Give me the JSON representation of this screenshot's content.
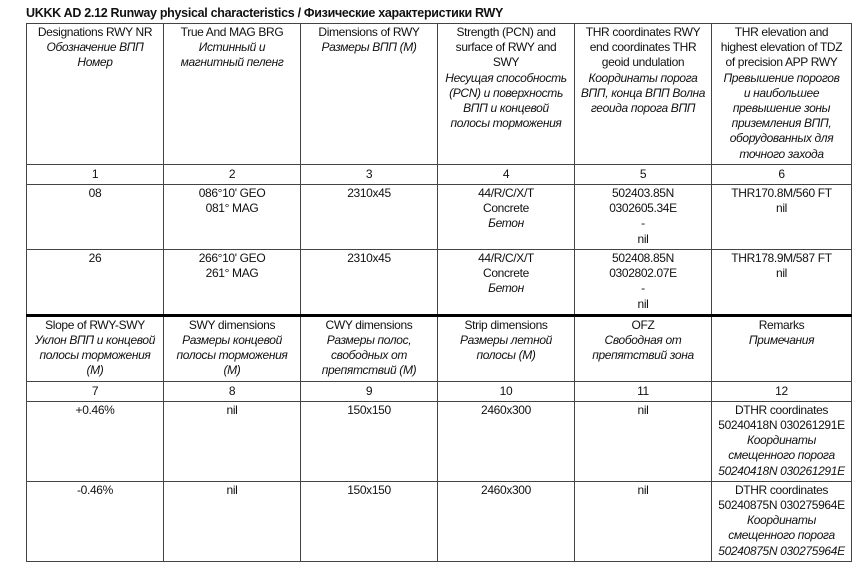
{
  "title": "UKKK AD 2.12 Runway physical characteristics / Физические характеристики RWY",
  "blocks": [
    {
      "header": [
        [
          {
            "t": "Designations RWY NR"
          },
          {
            "t": "Обозначение ВПП",
            "i": true
          },
          {
            "t": "Номер",
            "i": true
          }
        ],
        [
          {
            "t": "True And MAG BRG"
          },
          {
            "t": "Истинный и",
            "i": true
          },
          {
            "t": "магнитный пеленг",
            "i": true
          }
        ],
        [
          {
            "t": "Dimensions of RWY"
          },
          {
            "t": "Размеры ВПП (M)",
            "i": true
          }
        ],
        [
          {
            "t": "Strength (PCN) and"
          },
          {
            "t": "surface of RWY and"
          },
          {
            "t": "SWY"
          },
          {
            "t": "Несущая способность",
            "i": true
          },
          {
            "t": "(PCN) и поверхность",
            "i": true
          },
          {
            "t": "ВПП и концевой",
            "i": true
          },
          {
            "t": "полосы торможения",
            "i": true
          }
        ],
        [
          {
            "t": "THR coordinates RWY"
          },
          {
            "t": "end coordinates THR"
          },
          {
            "t": "geoid undulation"
          },
          {
            "t": "Координаты порога",
            "i": true
          },
          {
            "t": "ВПП, конца ВПП Волна",
            "i": true
          },
          {
            "t": "геоида порога ВПП",
            "i": true
          }
        ],
        [
          {
            "t": "THR elevation and"
          },
          {
            "t": "highest elevation of TDZ"
          },
          {
            "t": "of precision APP RWY"
          },
          {
            "t": "Превышение порогов",
            "i": true
          },
          {
            "t": "и наибольшее",
            "i": true
          },
          {
            "t": "превышение зоны",
            "i": true
          },
          {
            "t": "приземления ВПП,",
            "i": true
          },
          {
            "t": "оборудованных для",
            "i": true
          },
          {
            "t": "точного захода",
            "i": true
          }
        ]
      ],
      "numbers": [
        "1",
        "2",
        "3",
        "4",
        "5",
        "6"
      ],
      "rows": [
        [
          [
            {
              "t": "08"
            }
          ],
          [
            {
              "t": "086°10' GEO"
            },
            {
              "t": "081° MAG"
            }
          ],
          [
            {
              "t": "2310x45"
            }
          ],
          [
            {
              "t": "44/R/C/X/T"
            },
            {
              "t": "Concrete"
            },
            {
              "t": "Бетон",
              "i": true
            }
          ],
          [
            {
              "t": "502403.85N"
            },
            {
              "t": "0302605.34E"
            },
            {
              "t": "-"
            },
            {
              "t": "nil"
            }
          ],
          [
            {
              "t": "THR170.8M/560 FT"
            },
            {
              "t": "nil"
            }
          ]
        ],
        [
          [
            {
              "t": "26"
            }
          ],
          [
            {
              "t": "266°10' GEO"
            },
            {
              "t": "261° MAG"
            }
          ],
          [
            {
              "t": "2310x45"
            }
          ],
          [
            {
              "t": "44/R/C/X/T"
            },
            {
              "t": "Concrete"
            },
            {
              "t": "Бетон",
              "i": true
            }
          ],
          [
            {
              "t": "502408.85N"
            },
            {
              "t": "0302802.07E"
            },
            {
              "t": "-"
            },
            {
              "t": "nil"
            }
          ],
          [
            {
              "t": "THR178.9M/587 FT"
            },
            {
              "t": "nil"
            }
          ]
        ]
      ]
    },
    {
      "header": [
        [
          {
            "t": "Slope of RWY-SWY"
          },
          {
            "t": "Уклон ВПП и концевой",
            "i": true
          },
          {
            "t": "полосы торможения",
            "i": true
          },
          {
            "t": "(M)",
            "i": true
          }
        ],
        [
          {
            "t": "SWY dimensions"
          },
          {
            "t": "Размеры концевой",
            "i": true
          },
          {
            "t": "полосы торможения",
            "i": true
          },
          {
            "t": "(M)",
            "i": true
          }
        ],
        [
          {
            "t": "CWY dimensions"
          },
          {
            "t": "Размеры полос,",
            "i": true
          },
          {
            "t": "свободных от",
            "i": true
          },
          {
            "t": "препятствий (M)",
            "i": true
          }
        ],
        [
          {
            "t": "Strip dimensions"
          },
          {
            "t": "Размеры летной",
            "i": true
          },
          {
            "t": "полосы (M)",
            "i": true
          }
        ],
        [
          {
            "t": "OFZ"
          },
          {
            "t": "Свободная от",
            "i": true
          },
          {
            "t": "препятствий зона",
            "i": true
          }
        ],
        [
          {
            "t": "Remarks"
          },
          {
            "t": "Примечания",
            "i": true
          }
        ]
      ],
      "numbers": [
        "7",
        "8",
        "9",
        "10",
        "11",
        "12"
      ],
      "rows": [
        [
          [
            {
              "t": "+0.46%"
            }
          ],
          [
            {
              "t": "nil"
            }
          ],
          [
            {
              "t": "150x150"
            }
          ],
          [
            {
              "t": "2460x300"
            }
          ],
          [
            {
              "t": "nil"
            }
          ],
          [
            {
              "t": "DTHR coordinates"
            },
            {
              "t": "50240418N 030261291E"
            },
            {
              "t": "Координаты",
              "i": true
            },
            {
              "t": "смещенного порога",
              "i": true
            },
            {
              "t": "50240418N 030261291E",
              "i": true
            }
          ]
        ],
        [
          [
            {
              "t": "-0.46%"
            }
          ],
          [
            {
              "t": "nil"
            }
          ],
          [
            {
              "t": "150x150"
            }
          ],
          [
            {
              "t": "2460x300"
            }
          ],
          [
            {
              "t": "nil"
            }
          ],
          [
            {
              "t": "DTHR coordinates"
            },
            {
              "t": "50240875N 030275964E"
            },
            {
              "t": "Координаты",
              "i": true
            },
            {
              "t": "смещенного порога",
              "i": true
            },
            {
              "t": "50240875N 030275964E",
              "i": true
            }
          ]
        ]
      ]
    }
  ]
}
